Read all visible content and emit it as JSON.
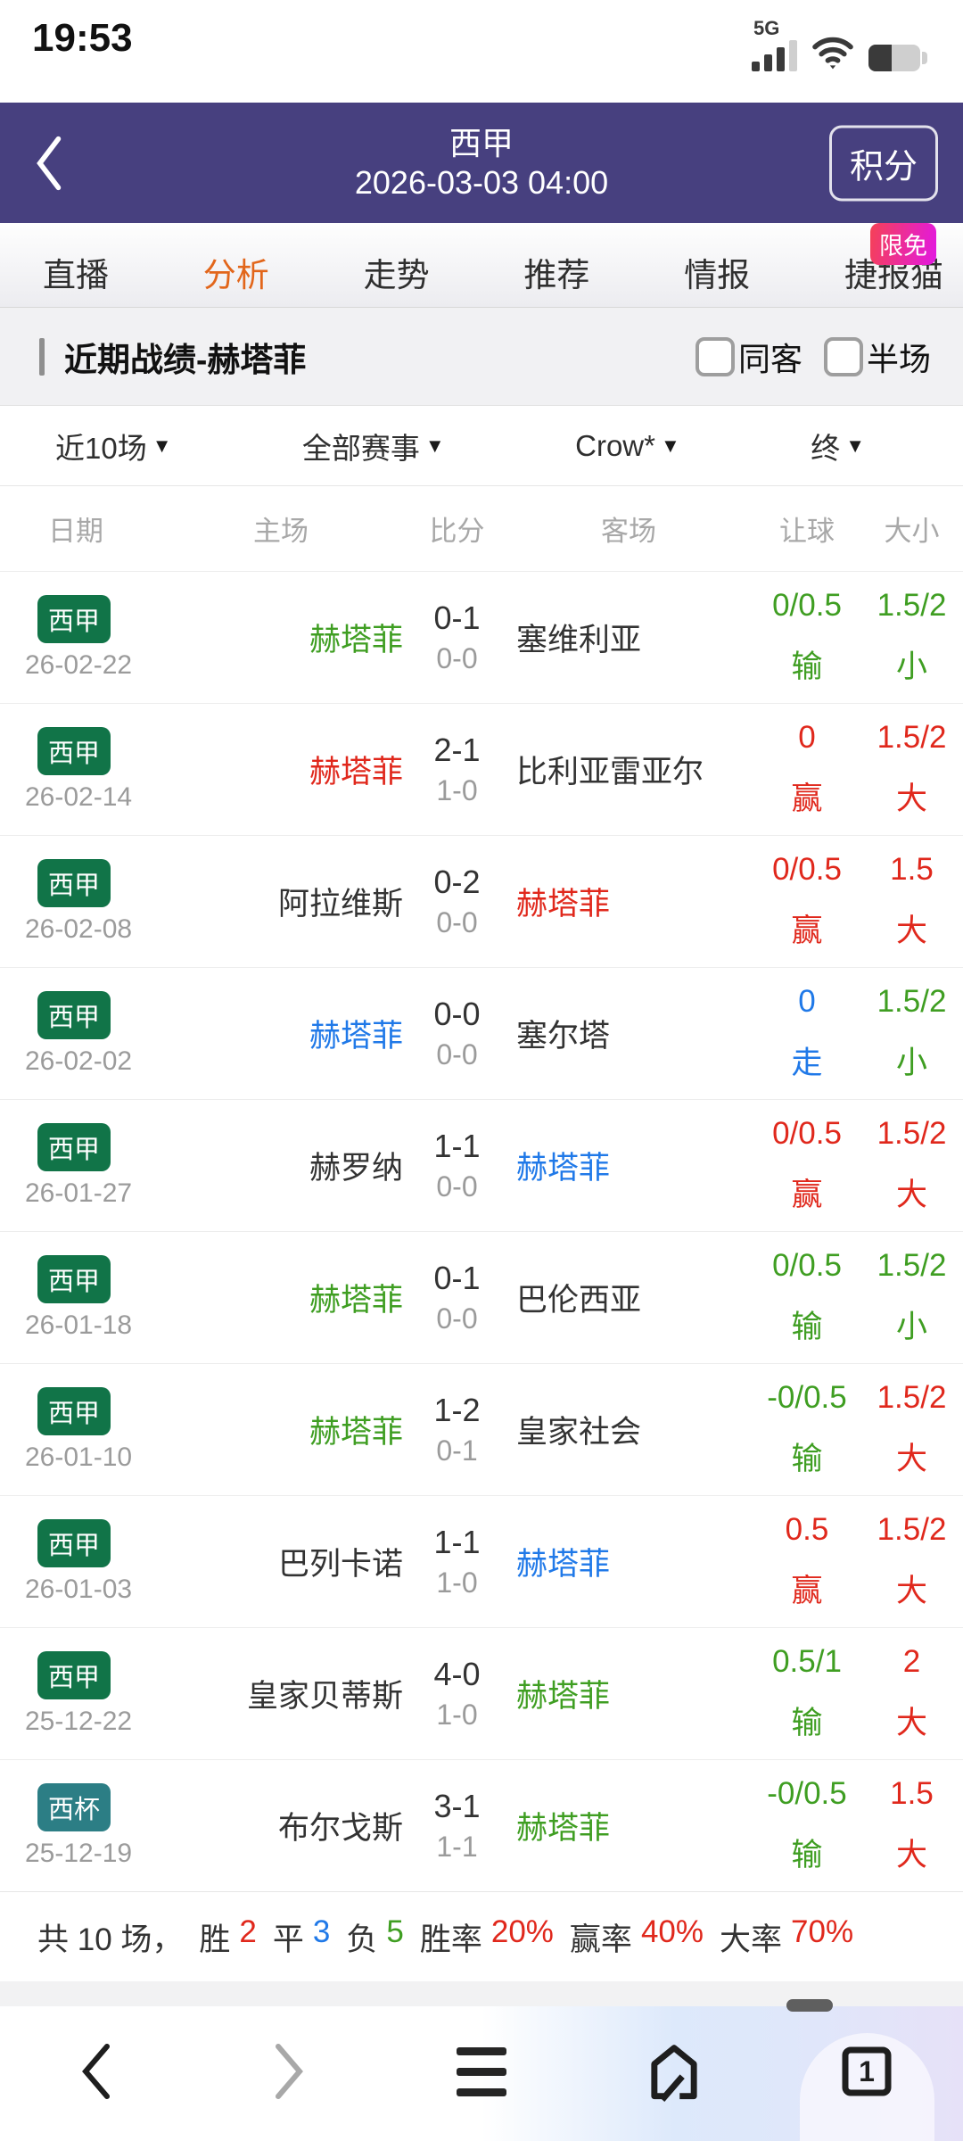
{
  "status_bar": {
    "time": "19:53",
    "network": "5G"
  },
  "header": {
    "title": "西甲",
    "datetime": "2026-03-03 04:00",
    "action": "积分"
  },
  "tabs": [
    {
      "label": "直播",
      "active": false
    },
    {
      "label": "分析",
      "active": true
    },
    {
      "label": "走势",
      "active": false
    },
    {
      "label": "推荐",
      "active": false
    },
    {
      "label": "情报",
      "active": false
    },
    {
      "label": "捷报猫",
      "active": false,
      "badge": "限免"
    }
  ],
  "section": {
    "title": "近期战绩-赫塔菲",
    "checkboxes": [
      {
        "label": "同客",
        "checked": false
      },
      {
        "label": "半场",
        "checked": false
      }
    ]
  },
  "filters": [
    {
      "label": "近10场"
    },
    {
      "label": "全部赛事"
    },
    {
      "label": "Crow*"
    },
    {
      "label": "终"
    }
  ],
  "ui": {
    "caret_down": "▼"
  },
  "table": {
    "columns": [
      "日期",
      "主场",
      "比分",
      "客场",
      "让球",
      "大小"
    ],
    "rows": [
      {
        "league": "西甲",
        "league_badge": "green",
        "date": "26-02-22",
        "home": "赫塔菲",
        "home_color": "green",
        "score": "0-1",
        "half": "0-0",
        "away": "塞维利亚",
        "away_color": "black",
        "handicap": "0/0.5",
        "handicap_result": "输",
        "handicap_color": "green",
        "ou": "1.5/2",
        "ou_result": "小",
        "ou_color": "green"
      },
      {
        "league": "西甲",
        "league_badge": "green",
        "date": "26-02-14",
        "home": "赫塔菲",
        "home_color": "red",
        "score": "2-1",
        "half": "1-0",
        "away": "比利亚雷亚尔",
        "away_color": "black",
        "handicap": "0",
        "handicap_result": "赢",
        "handicap_color": "red",
        "ou": "1.5/2",
        "ou_result": "大",
        "ou_color": "red"
      },
      {
        "league": "西甲",
        "league_badge": "green",
        "date": "26-02-08",
        "home": "阿拉维斯",
        "home_color": "black",
        "score": "0-2",
        "half": "0-0",
        "away": "赫塔菲",
        "away_color": "red",
        "handicap": "0/0.5",
        "handicap_result": "赢",
        "handicap_color": "red",
        "ou": "1.5",
        "ou_result": "大",
        "ou_color": "red"
      },
      {
        "league": "西甲",
        "league_badge": "green",
        "date": "26-02-02",
        "home": "赫塔菲",
        "home_color": "blue",
        "score": "0-0",
        "half": "0-0",
        "away": "塞尔塔",
        "away_color": "black",
        "handicap": "0",
        "handicap_result": "走",
        "handicap_color": "blue",
        "ou": "1.5/2",
        "ou_result": "小",
        "ou_color": "green"
      },
      {
        "league": "西甲",
        "league_badge": "green",
        "date": "26-01-27",
        "home": "赫罗纳",
        "home_color": "black",
        "score": "1-1",
        "half": "0-0",
        "away": "赫塔菲",
        "away_color": "blue",
        "handicap": "0/0.5",
        "handicap_result": "赢",
        "handicap_color": "red",
        "ou": "1.5/2",
        "ou_result": "大",
        "ou_color": "red"
      },
      {
        "league": "西甲",
        "league_badge": "green",
        "date": "26-01-18",
        "home": "赫塔菲",
        "home_color": "green",
        "score": "0-1",
        "half": "0-0",
        "away": "巴伦西亚",
        "away_color": "black",
        "handicap": "0/0.5",
        "handicap_result": "输",
        "handicap_color": "green",
        "ou": "1.5/2",
        "ou_result": "小",
        "ou_color": "green"
      },
      {
        "league": "西甲",
        "league_badge": "green",
        "date": "26-01-10",
        "home": "赫塔菲",
        "home_color": "green",
        "score": "1-2",
        "half": "0-1",
        "away": "皇家社会",
        "away_color": "black",
        "handicap": "-0/0.5",
        "handicap_result": "输",
        "handicap_color": "green",
        "ou": "1.5/2",
        "ou_result": "大",
        "ou_color": "red"
      },
      {
        "league": "西甲",
        "league_badge": "green",
        "date": "26-01-03",
        "home": "巴列卡诺",
        "home_color": "black",
        "score": "1-1",
        "half": "1-0",
        "away": "赫塔菲",
        "away_color": "blue",
        "handicap": "0.5",
        "handicap_result": "赢",
        "handicap_color": "red",
        "ou": "1.5/2",
        "ou_result": "大",
        "ou_color": "red"
      },
      {
        "league": "西甲",
        "league_badge": "green",
        "date": "25-12-22",
        "home": "皇家贝蒂斯",
        "home_color": "black",
        "score": "4-0",
        "half": "1-0",
        "away": "赫塔菲",
        "away_color": "green",
        "handicap": "0.5/1",
        "handicap_result": "输",
        "handicap_color": "green",
        "ou": "2",
        "ou_result": "大",
        "ou_color": "red"
      },
      {
        "league": "西杯",
        "league_badge": "teal",
        "date": "25-12-19",
        "home": "布尔戈斯",
        "home_color": "black",
        "score": "3-1",
        "half": "1-1",
        "away": "赫塔菲",
        "away_color": "green",
        "handicap": "-0/0.5",
        "handicap_result": "输",
        "handicap_color": "green",
        "ou": "1.5",
        "ou_result": "大",
        "ou_color": "red"
      }
    ]
  },
  "summary": {
    "segments": [
      {
        "label": "共 10 场，",
        "value": "",
        "value_color": "black"
      },
      {
        "label": "胜",
        "value": "2",
        "value_color": "red"
      },
      {
        "label": "平",
        "value": "3",
        "value_color": "blue"
      },
      {
        "label": "负",
        "value": "5",
        "value_color": "green"
      },
      {
        "label": "胜率",
        "value": "20%",
        "value_color": "red"
      },
      {
        "label": "赢率",
        "value": "40%",
        "value_color": "red"
      },
      {
        "label": "大率",
        "value": "70%",
        "value_color": "red"
      }
    ]
  },
  "bottom_nav": {
    "tab_count": "1"
  },
  "colors": {
    "green": "#3f9e22",
    "red": "#e0281c",
    "blue": "#2079e8",
    "black": "#333333",
    "badge_green": "#117448",
    "badge_teal": "#2c7e85",
    "accent_purple": "#47407f",
    "tab_active": "#e2661b"
  }
}
